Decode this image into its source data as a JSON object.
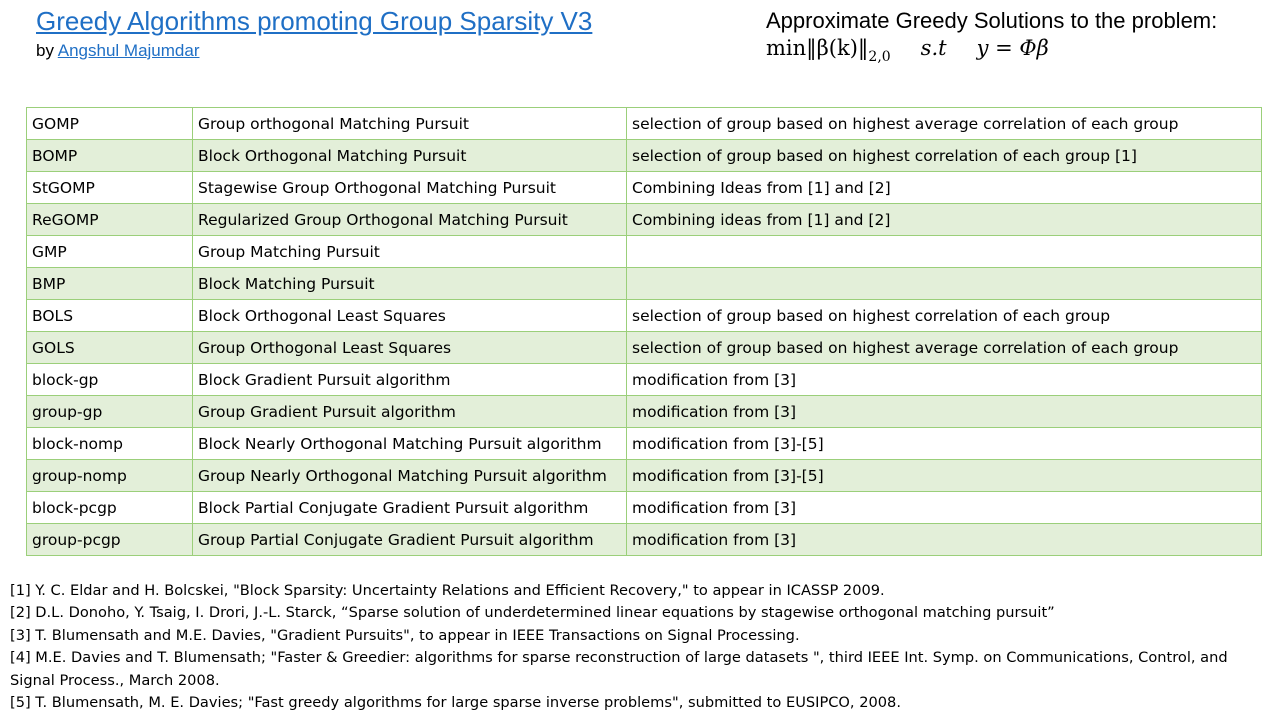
{
  "header": {
    "title": "Greedy Algorithms promoting Group Sparsity V3",
    "by_prefix": "by ",
    "author": "Angshul Majumdar",
    "problem_heading": "Approximate Greedy Solutions to the problem:",
    "formula": {
      "lhs": "min‖β(k)‖",
      "subscript": "2,0",
      "st": "s.t",
      "constraint": "y = Φβ"
    }
  },
  "table": {
    "rows": [
      {
        "abbr": "GOMP",
        "name": "Group orthogonal Matching Pursuit",
        "note": "selection of group based on highest average correlation of each group"
      },
      {
        "abbr": "BOMP",
        "name": "Block Orthogonal Matching Pursuit",
        "note": "selection of group based on highest correlation of each group [1]"
      },
      {
        "abbr": "StGOMP",
        "name": "Stagewise Group Orthogonal Matching Pursuit",
        "note": "Combining Ideas from [1] and [2]"
      },
      {
        "abbr": "ReGOMP",
        "name": "Regularized Group Orthogonal Matching Pursuit",
        "note": "Combining ideas from [1] and [2]"
      },
      {
        "abbr": "GMP",
        "name": "Group Matching Pursuit",
        "note": ""
      },
      {
        "abbr": "BMP",
        "name": "Block Matching Pursuit",
        "note": ""
      },
      {
        "abbr": "BOLS",
        "name": "Block Orthogonal Least Squares",
        "note": "selection of group based on highest correlation of each group"
      },
      {
        "abbr": "GOLS",
        "name": "Group Orthogonal Least Squares",
        "note": "selection of group based on highest average correlation of each group"
      },
      {
        "abbr": "block-gp",
        "name": "Block Gradient Pursuit algorithm",
        "note": "modification from [3]"
      },
      {
        "abbr": "group-gp",
        "name": "Group Gradient Pursuit algorithm",
        "note": "modification from [3]"
      },
      {
        "abbr": "block-nomp",
        "name": "Block Nearly Orthogonal Matching Pursuit algorithm",
        "note": "modification from [3]-[5]"
      },
      {
        "abbr": "group-nomp",
        "name": "Group Nearly Orthogonal Matching Pursuit algorithm",
        "note": "modification from [3]-[5]"
      },
      {
        "abbr": "block-pcgp",
        "name": "Block Partial Conjugate Gradient Pursuit algorithm",
        "note": "modification from [3]"
      },
      {
        "abbr": "group-pcgp",
        "name": "Group Partial Conjugate Gradient Pursuit algorithm",
        "note": "modification from [3]"
      }
    ]
  },
  "references": [
    "[1] Y. C. Eldar and H. Bolcskei, \"Block Sparsity: Uncertainty  Relations and Efficient Recovery,\" to appear in ICASSP 2009.",
    "[2] D.L. Donoho, Y. Tsaig, I. Drori, J.-L. Starck, “Sparse solution of underdetermined linear equations by stagewise orthogonal matching pursuit”",
    "[3] T. Blumensath and M.E. Davies, \"Gradient Pursuits\", to appear in IEEE Transactions on Signal Processing.",
    "[4] M.E. Davies and T. Blumensath; \"Faster & Greedier: algorithms for sparse reconstruction of large datasets \", third IEEE Int. Symp. on Communications, Control, and Signal Process., March 2008.",
    "[5] T. Blumensath, M. E. Davies; \"Fast greedy algorithms for large sparse inverse problems\", submitted to EUSIPCO, 2008."
  ],
  "colors": {
    "link": "#1f6fc5",
    "table_border": "#9bcf7a",
    "row_alt": "#e3efd9"
  }
}
